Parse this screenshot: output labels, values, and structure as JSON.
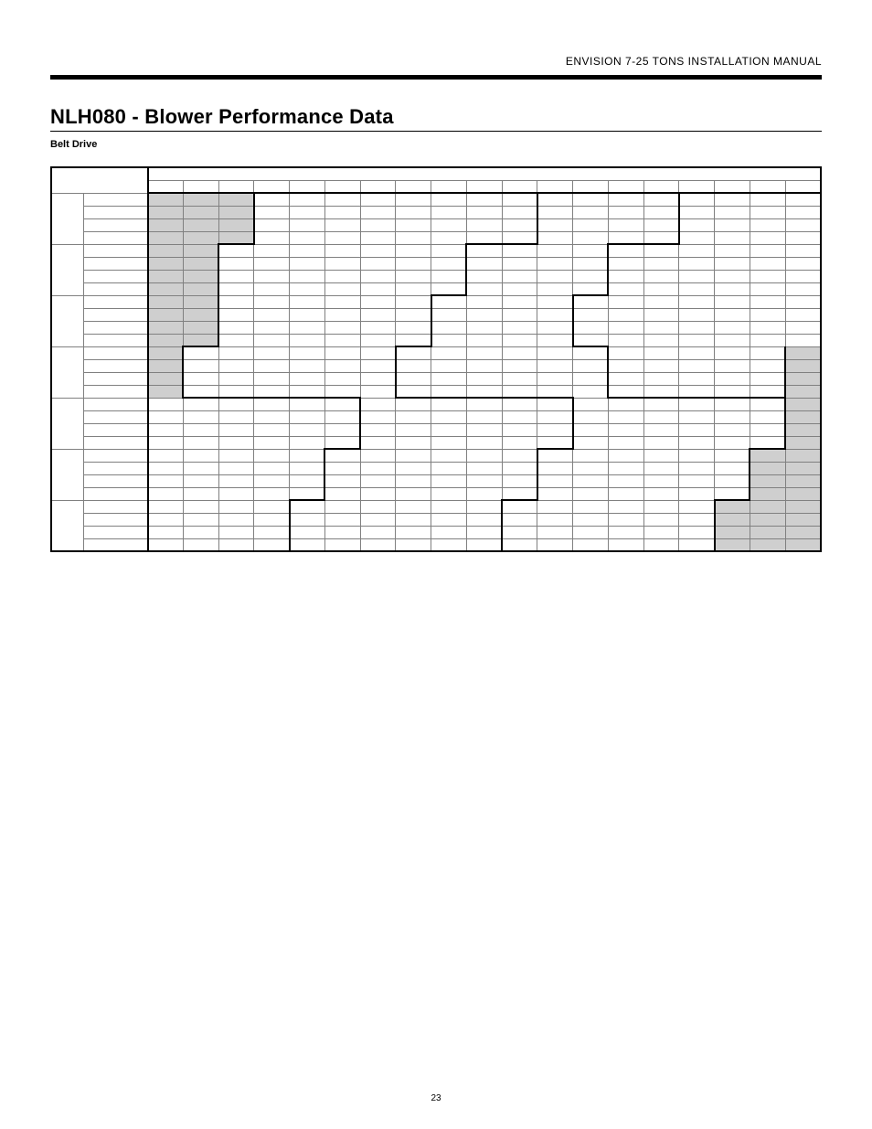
{
  "header": "ENVISION 7-25 TONS INSTALLATION MANUAL",
  "title": "NLH080 - Blower Performance Data",
  "subtitle": "Belt Drive",
  "page_number": "23",
  "table": {
    "col_widths_pct": [
      4,
      8,
      4.4,
      4.4,
      4.4,
      4.4,
      4.4,
      4.4,
      4.4,
      4.4,
      4.4,
      4.4,
      4.4,
      4.4,
      4.4,
      4.4,
      4.4,
      4.4,
      4.4,
      4.4,
      4.4
    ],
    "header1_span": 19,
    "header2_cols": 19,
    "cfm_groups": 7,
    "rows_per_group": 4,
    "shaded": {
      "0": [
        [
          0,
          3
        ],
        [
          1,
          3
        ],
        [
          2,
          3
        ],
        [
          3,
          3
        ]
      ],
      "1": [
        [
          0,
          2
        ],
        [
          1,
          2
        ],
        [
          2,
          2
        ],
        [
          3,
          2
        ]
      ],
      "2": [
        [
          0,
          2
        ],
        [
          1,
          2
        ],
        [
          2,
          2
        ],
        [
          3,
          2
        ]
      ],
      "3": [
        [
          0,
          1
        ],
        [
          1,
          1
        ],
        [
          2,
          1
        ],
        [
          3,
          1
        ],
        [
          0,
          19,
          19
        ],
        [
          1,
          19,
          19
        ],
        [
          2,
          19,
          19
        ],
        [
          3,
          19,
          19
        ]
      ],
      "4": [
        [
          0,
          19,
          19
        ],
        [
          1,
          19,
          19
        ],
        [
          2,
          19,
          19
        ],
        [
          3,
          19,
          19
        ]
      ],
      "5": [
        [
          0,
          18,
          19
        ],
        [
          1,
          18,
          19
        ],
        [
          2,
          18,
          19
        ],
        [
          3,
          18,
          19
        ]
      ],
      "6": [
        [
          0,
          17,
          19
        ],
        [
          1,
          17,
          19
        ],
        [
          2,
          17,
          19
        ],
        [
          3,
          17,
          19
        ]
      ]
    },
    "inner_stair_edges": {
      "comment": "approximate heavy-border stair pattern inside grid — left stair and right stair",
      "left_stairs": [
        {
          "group": 0,
          "col_after": 3
        },
        {
          "group": 1,
          "col_after": 2
        },
        {
          "group": 2,
          "col_after": 2
        },
        {
          "group": 3,
          "col_after": 1
        },
        {
          "group": 4,
          "col_after": 0
        },
        {
          "group": 5,
          "col_after": 0
        },
        {
          "group": 6,
          "col_after": 0
        }
      ],
      "mid_stairs_a": [
        {
          "group": 0,
          "col_after": 11
        },
        {
          "group": 1,
          "col_after": 9
        },
        {
          "group": 2,
          "col_after": 8
        },
        {
          "group": 3,
          "col_after": 7
        },
        {
          "group": 4,
          "col_after": 6
        },
        {
          "group": 5,
          "col_after": 5
        },
        {
          "group": 6,
          "col_after": 4
        }
      ],
      "mid_stairs_b": [
        {
          "group": 0,
          "col_after": 15
        },
        {
          "group": 1,
          "col_after": 13
        },
        {
          "group": 2,
          "col_after": 12
        },
        {
          "group": 3,
          "col_after": 13
        },
        {
          "group": 4,
          "col_after": 12
        },
        {
          "group": 5,
          "col_after": 11
        },
        {
          "group": 6,
          "col_after": 10
        }
      ],
      "right_stairs": [
        {
          "group": 3,
          "col_after": 18
        },
        {
          "group": 4,
          "col_after": 18
        },
        {
          "group": 5,
          "col_after": 17
        },
        {
          "group": 6,
          "col_after": 16
        }
      ]
    }
  }
}
